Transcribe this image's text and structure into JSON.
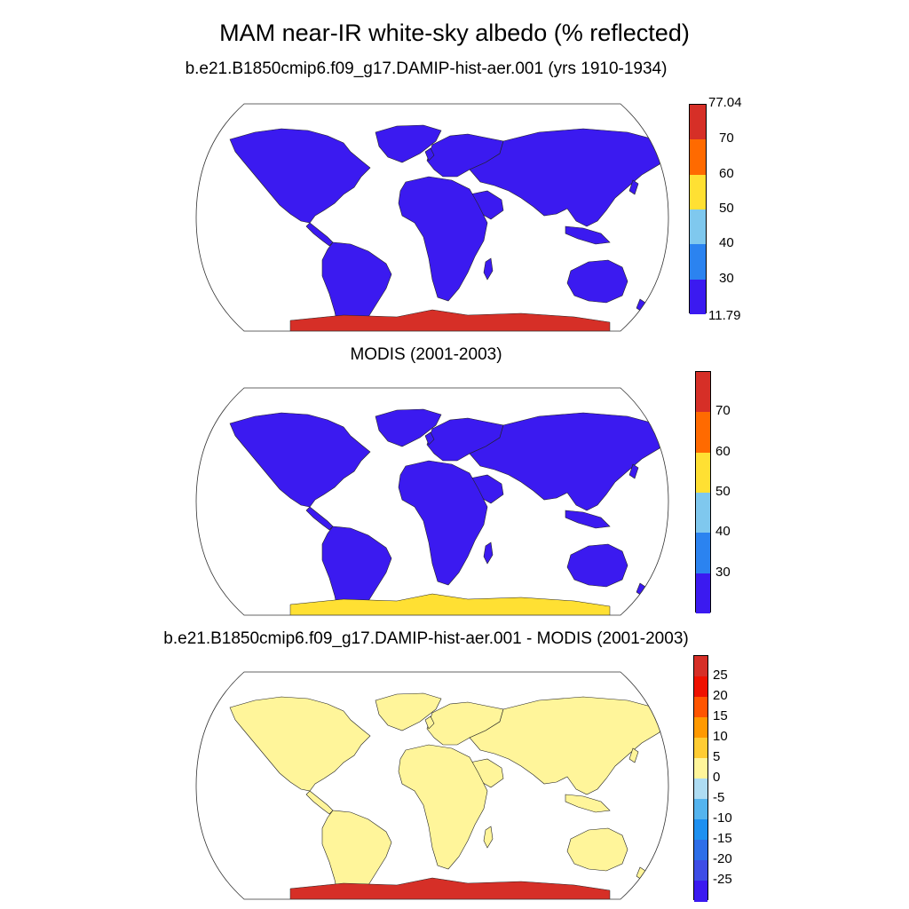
{
  "figure": {
    "title": "MAM near-IR white-sky albedo (% reflected)"
  },
  "panels": [
    {
      "subtitle": "b.e21.B1850cmip6.f09_g17.DAMIP-hist-aer.001 (yrs 1910-1934)",
      "colorbar": {
        "min_label": "11.79",
        "max_label": "77.04",
        "labels": [
          "70",
          "60",
          "50",
          "40",
          "30"
        ],
        "colors": [
          "#d62f27",
          "#ff6a00",
          "#ffe033",
          "#7fc8ee",
          "#2b83f0",
          "#3b1af0"
        ]
      },
      "land_color": "#3b1af0",
      "antarctica_color": "#d62f27"
    },
    {
      "subtitle": "MODIS (2001-2003)",
      "colorbar": {
        "labels": [
          "70",
          "60",
          "50",
          "40",
          "30"
        ],
        "colors": [
          "#d62f27",
          "#ff6a00",
          "#ffe033",
          "#7fc8ee",
          "#2b83f0",
          "#3b1af0"
        ]
      },
      "land_color": "#3b1af0",
      "antarctica_color": "#ffe033"
    },
    {
      "subtitle": "b.e21.B1850cmip6.f09_g17.DAMIP-hist-aer.001 - MODIS (2001-2003)",
      "colorbar": {
        "labels": [
          "25",
          "20",
          "15",
          "10",
          "5",
          "0",
          "-5",
          "-10",
          "-15",
          "-20",
          "-25"
        ],
        "colors": [
          "#d62f27",
          "#ee1100",
          "#ff5500",
          "#ff9900",
          "#ffcc33",
          "#fff59a",
          "#aedcf2",
          "#55b4ee",
          "#1e90f0",
          "#2d6ee8",
          "#3e4de6",
          "#3b1af0"
        ]
      },
      "land_color": "#fff59a",
      "antarctica_color": "#d62f27"
    }
  ]
}
